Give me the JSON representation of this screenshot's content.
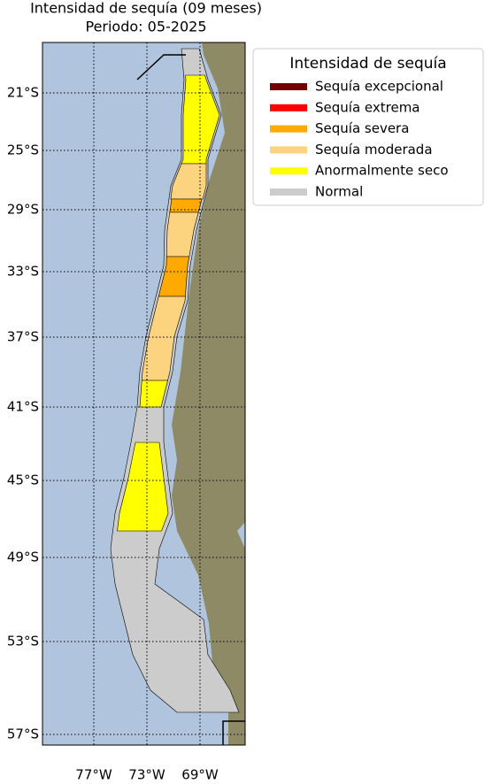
{
  "title": "Intensidad de sequía (09 meses)",
  "subtitle": "Periodo: 05-2025",
  "legend": {
    "title": "Intensidad de sequía",
    "items": [
      {
        "label": "Sequía excepcional",
        "color": "#730000"
      },
      {
        "label": "Sequía extrema",
        "color": "#ff0000"
      },
      {
        "label": "Sequía severa",
        "color": "#ffaa00"
      },
      {
        "label": "Sequía moderada",
        "color": "#fcd37f"
      },
      {
        "label": "Anormalmente seco",
        "color": "#ffff00"
      },
      {
        "label": "Normal",
        "color": "#cccccc"
      }
    ]
  },
  "latitude_labels": [
    "21°S",
    "25°S",
    "29°S",
    "33°S",
    "37°S",
    "41°S",
    "45°S",
    "49°S",
    "53°S",
    "57°S"
  ],
  "longitude_labels": [
    "77°W",
    "73°W",
    "69°W"
  ]
}
